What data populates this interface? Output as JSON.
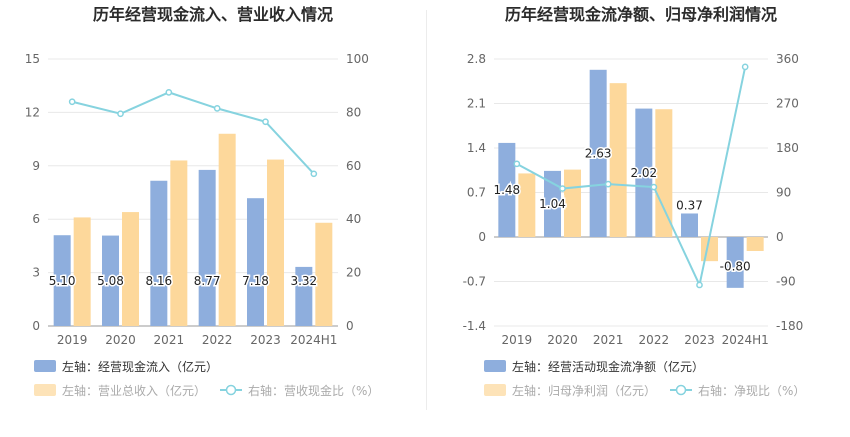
{
  "chart_data": [
    {
      "type": "bar",
      "title": "历年经营现金流入、营业收入情况",
      "categories": [
        "2019",
        "2020",
        "2021",
        "2022",
        "2023",
        "2024H1"
      ],
      "left_axis": {
        "ticks": [
          "15",
          "12",
          "9",
          "6",
          "3",
          "0"
        ],
        "ylim": [
          0,
          15
        ]
      },
      "right_axis": {
        "ticks": [
          "100",
          "80",
          "60",
          "40",
          "20",
          "0"
        ],
        "ylim": [
          0,
          100
        ]
      },
      "series": [
        {
          "name": "左轴：经营现金流入（亿元）",
          "type": "bar",
          "axis": "left",
          "color": "#8eaedd",
          "values": [
            5.1,
            5.08,
            8.16,
            8.77,
            7.18,
            3.32
          ],
          "labels": [
            "5.10",
            "5.08",
            "8.16",
            "8.77",
            "7.18",
            "3.32"
          ]
        },
        {
          "name": "左轴：营业总收入（亿元）",
          "type": "bar",
          "axis": "left",
          "color": "#fdd89b",
          "values": [
            6.1,
            6.4,
            9.3,
            10.8,
            9.35,
            5.8
          ]
        },
        {
          "name": "右轴：营收现金比（%）",
          "type": "line",
          "axis": "right",
          "color": "#86d3df",
          "values": [
            84,
            79.5,
            87.5,
            81.5,
            76.5,
            57
          ]
        }
      ]
    },
    {
      "type": "bar",
      "title": "历年经营现金流净额、归母净利润情况",
      "categories": [
        "2019",
        "2020",
        "2021",
        "2022",
        "2023",
        "2024H1"
      ],
      "left_axis": {
        "ticks": [
          "2.8",
          "2.1",
          "1.4",
          "0.7",
          "0",
          "-0.7",
          "-1.4"
        ],
        "ylim": [
          -1.4,
          2.8
        ]
      },
      "right_axis": {
        "ticks": [
          "360",
          "270",
          "180",
          "90",
          "0",
          "-90",
          "-180"
        ],
        "ylim": [
          -180,
          360
        ]
      },
      "series": [
        {
          "name": "左轴：经营活动现金流净额（亿元）",
          "type": "bar",
          "axis": "left",
          "color": "#8eaedd",
          "values": [
            1.48,
            1.04,
            2.63,
            2.02,
            0.37,
            -0.8
          ],
          "labels": [
            "1.48",
            "1.04",
            "2.63",
            "2.02",
            "0.37",
            "-0.80"
          ]
        },
        {
          "name": "左轴：归母净利润（亿元）",
          "type": "bar",
          "axis": "left",
          "color": "#fdd89b",
          "values": [
            1.0,
            1.06,
            2.42,
            2.01,
            -0.38,
            -0.22
          ]
        },
        {
          "name": "右轴：净现比（%）",
          "type": "line",
          "axis": "right",
          "color": "#86d3df",
          "values": [
            148,
            98,
            107,
            101,
            -97,
            344
          ]
        }
      ]
    }
  ]
}
